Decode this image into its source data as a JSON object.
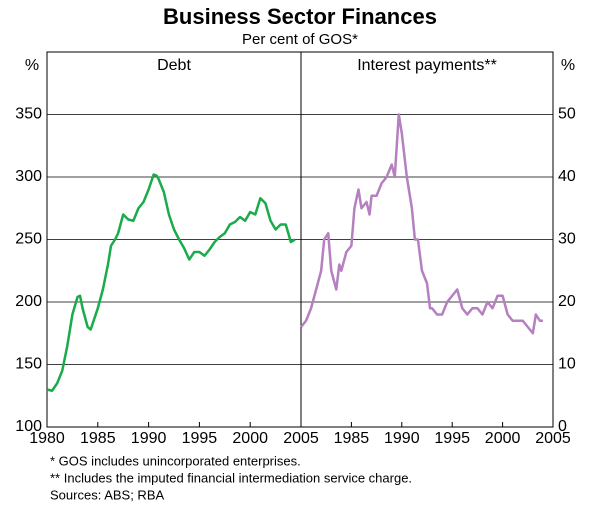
{
  "title": "Business Sector Finances",
  "subtitle": "Per cent of GOS*",
  "notes": [
    "*  GOS includes unincorporated enterprises.",
    "** Includes the imputed financial intermediation service charge.",
    "Sources: ABS; RBA"
  ],
  "chart_data": [
    {
      "type": "line",
      "panel_title": "Debt",
      "ylabel": "%",
      "y_axis": "left",
      "color": "#1aab4a",
      "xlim": [
        1980,
        2005
      ],
      "xticks": [
        1980,
        1985,
        1990,
        1995,
        2000,
        2005
      ],
      "ylim": [
        100,
        400
      ],
      "yticks": [
        100,
        150,
        200,
        250,
        300,
        350
      ],
      "grid": true,
      "x": [
        1980,
        1980.5,
        1981,
        1981.5,
        1982,
        1982.5,
        1983,
        1983.25,
        1983.5,
        1984,
        1984.3,
        1985,
        1985.5,
        1986,
        1986.3,
        1986.7,
        1987,
        1987.5,
        1988,
        1988.5,
        1989,
        1989.5,
        1990,
        1990.5,
        1990.8,
        1991,
        1991.5,
        1992,
        1992.5,
        1993,
        1993.5,
        1994,
        1994.5,
        1995,
        1995.5,
        1996,
        1996.5,
        1997,
        1997.5,
        1998,
        1998.5,
        1999,
        1999.5,
        2000,
        2000.5,
        2001,
        2001.5,
        2002,
        2002.5,
        2003,
        2003.5,
        2004,
        2004.4
      ],
      "values": [
        130,
        129,
        135,
        145,
        165,
        190,
        204,
        205,
        195,
        180,
        178,
        195,
        210,
        230,
        245,
        250,
        255,
        270,
        266,
        265,
        275,
        280,
        290,
        302,
        301,
        298,
        288,
        270,
        258,
        250,
        243,
        234,
        240,
        240,
        237,
        242,
        248,
        252,
        255,
        262,
        264,
        268,
        265,
        272,
        270,
        283,
        279,
        265,
        258,
        262,
        262,
        248,
        250
      ]
    },
    {
      "type": "line",
      "panel_title": "Interest payments**",
      "ylabel": "%",
      "y_axis": "right",
      "color": "#b57fc0",
      "xlim": [
        1980,
        2005
      ],
      "xticks": [
        1985,
        1990,
        1995,
        2000,
        2005
      ],
      "ylim": [
        0,
        60
      ],
      "yticks": [
        0,
        10,
        20,
        30,
        40,
        50
      ],
      "grid": true,
      "x": [
        1980,
        1980.5,
        1981,
        1981.5,
        1982,
        1982.3,
        1982.7,
        1983,
        1983.5,
        1983.8,
        1984,
        1984.5,
        1985,
        1985.3,
        1985.7,
        1986,
        1986.5,
        1986.8,
        1987,
        1987.5,
        1988,
        1988.5,
        1989,
        1989.3,
        1989.7,
        1990,
        1990.5,
        1991,
        1991.3,
        1991.6,
        1992,
        1992.5,
        1992.8,
        1993,
        1993.5,
        1994,
        1994.5,
        1995,
        1995.5,
        1996,
        1996.5,
        1997,
        1997.5,
        1998,
        1998.5,
        1999,
        1999.5,
        2000,
        2000.5,
        2001,
        2001.5,
        2002,
        2002.5,
        2003,
        2003.3,
        2003.7,
        2004
      ],
      "values": [
        16,
        17,
        19,
        22,
        25,
        30,
        31,
        25,
        22,
        26,
        25,
        28,
        29,
        35,
        38,
        35,
        36,
        34,
        37,
        37,
        39,
        40,
        42,
        40,
        50,
        47,
        40,
        35,
        30,
        30,
        25,
        23,
        19,
        19,
        18,
        18,
        20,
        21,
        22,
        19,
        18,
        19,
        19,
        18,
        20,
        19,
        21,
        21,
        18,
        17,
        17,
        17,
        16,
        15,
        18,
        17,
        17
      ]
    }
  ]
}
